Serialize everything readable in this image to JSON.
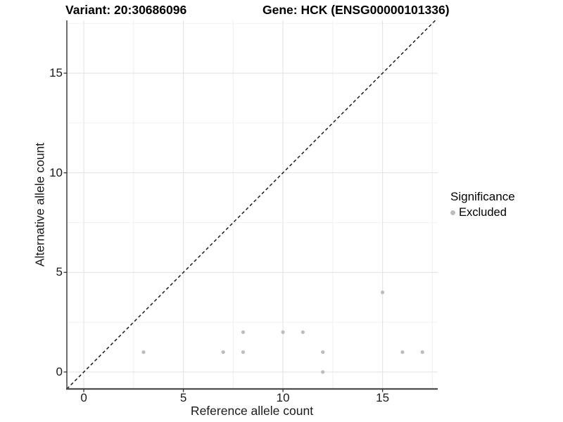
{
  "chart_data": {
    "type": "scatter",
    "title_left": "Variant: 20:30686096",
    "title_right": "Gene: HCK (ENSG00000101336)",
    "xlabel": "Reference allele count",
    "ylabel": "Alternative allele count",
    "xlim": [
      -0.85,
      17.77
    ],
    "ylim": [
      -0.85,
      17.65
    ],
    "x_major_ticks": [
      0,
      5,
      10,
      15
    ],
    "y_major_ticks": [
      0,
      5,
      10,
      15
    ],
    "x_minor_gridlines": [
      2.5,
      7.5,
      12.5,
      17.5
    ],
    "y_minor_gridlines": [
      2.5,
      7.5,
      12.5,
      17.5
    ],
    "grid": true,
    "identity_line": {
      "style": "dashed",
      "from": [
        -0.85,
        -0.85
      ],
      "to": [
        17.65,
        17.65
      ]
    },
    "series": [
      {
        "name": "Excluded",
        "color": "#bdbdbd",
        "points": [
          [
            3,
            1
          ],
          [
            7,
            1
          ],
          [
            8,
            1
          ],
          [
            8,
            2
          ],
          [
            10,
            2
          ],
          [
            11,
            2
          ],
          [
            12,
            0
          ],
          [
            12,
            1
          ],
          [
            15,
            4
          ],
          [
            16,
            1
          ],
          [
            17,
            1
          ]
        ]
      }
    ],
    "legend": {
      "title": "Significance",
      "position": "right",
      "items": [
        {
          "label": "Excluded",
          "color": "#bdbdbd"
        }
      ]
    },
    "colors": {
      "point": "#bdbdbd",
      "grid_major": "#e4e4e4",
      "grid_minor": "#f1f1f1",
      "axis_left": "#333333",
      "axis_bottom": "#4d4d4d",
      "tick_mark": "#333333",
      "identity_line": "#1a1a1a",
      "background": "#ffffff"
    }
  }
}
